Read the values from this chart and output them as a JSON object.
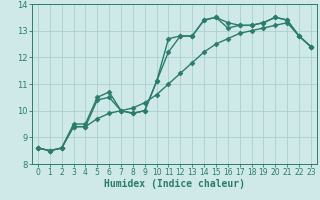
{
  "xlabel": "Humidex (Indice chaleur)",
  "x_values": [
    0,
    1,
    2,
    3,
    4,
    5,
    6,
    7,
    8,
    9,
    10,
    11,
    12,
    13,
    14,
    15,
    16,
    17,
    18,
    19,
    20,
    21,
    22,
    23
  ],
  "line1": [
    8.6,
    8.5,
    8.6,
    9.5,
    9.5,
    10.5,
    10.7,
    10.0,
    9.9,
    10.0,
    11.1,
    12.7,
    12.8,
    12.8,
    13.4,
    13.5,
    13.3,
    13.2,
    13.2,
    13.3,
    13.5,
    13.4,
    12.8,
    12.4
  ],
  "line2": [
    8.6,
    8.5,
    8.6,
    9.4,
    9.4,
    10.4,
    10.5,
    10.0,
    9.9,
    10.0,
    11.1,
    12.2,
    12.8,
    12.8,
    13.4,
    13.5,
    13.1,
    13.2,
    13.2,
    13.3,
    13.5,
    13.4,
    12.8,
    12.4
  ],
  "line3": [
    8.6,
    8.5,
    8.6,
    9.4,
    9.4,
    9.7,
    9.9,
    10.0,
    10.1,
    10.3,
    10.6,
    11.0,
    11.4,
    11.8,
    12.2,
    12.5,
    12.7,
    12.9,
    13.0,
    13.1,
    13.2,
    13.3,
    12.8,
    12.4
  ],
  "line_color": "#2a7d6b",
  "bg_color": "#cfe9e9",
  "grid_color": "#aacfcf",
  "ylim": [
    8,
    14
  ],
  "xlim_min": -0.5,
  "xlim_max": 23.5,
  "yticks": [
    8,
    9,
    10,
    11,
    12,
    13,
    14
  ],
  "xticks": [
    0,
    1,
    2,
    3,
    4,
    5,
    6,
    7,
    8,
    9,
    10,
    11,
    12,
    13,
    14,
    15,
    16,
    17,
    18,
    19,
    20,
    21,
    22,
    23
  ],
  "marker_size": 2.5,
  "line_width": 1.0,
  "xlabel_fontsize": 7,
  "tick_fontsize": 5.5
}
